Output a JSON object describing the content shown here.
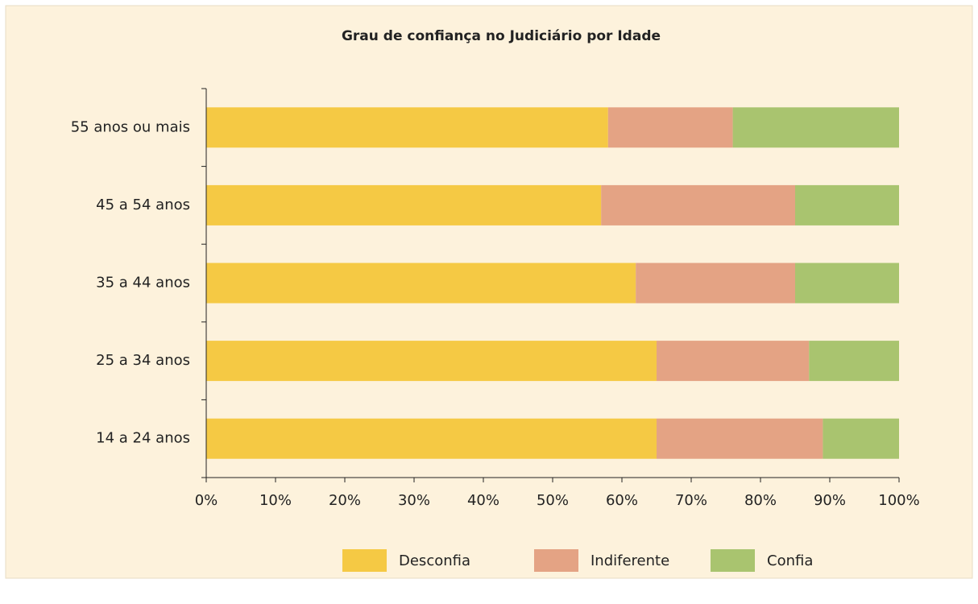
{
  "chart_data": {
    "type": "stacked-barh",
    "title": "Grau de confiança no Judiciário por Idade",
    "categories": [
      "55 anos ou mais",
      "45 a 54 anos",
      "35 a 44 anos",
      "25 a 34 anos",
      "14 a 24 anos"
    ],
    "series": [
      {
        "name": "Desconfia",
        "color": "#f5c944",
        "values": [
          58,
          57,
          62,
          65,
          65
        ]
      },
      {
        "name": "Indiferente",
        "color": "#e4a384",
        "values": [
          18,
          28,
          23,
          22,
          24
        ]
      },
      {
        "name": "Confia",
        "color": "#a9c46f",
        "values": [
          24,
          15,
          15,
          13,
          11
        ]
      }
    ],
    "xlim": [
      0,
      100
    ],
    "xticks": [
      {
        "value": 0,
        "label": "0%"
      },
      {
        "value": 10,
        "label": "10%"
      },
      {
        "value": 20,
        "label": "20%"
      },
      {
        "value": 30,
        "label": "30%"
      },
      {
        "value": 40,
        "label": "40%"
      },
      {
        "value": 50,
        "label": "50%"
      },
      {
        "value": 60,
        "label": "60%"
      },
      {
        "value": 70,
        "label": "70%"
      },
      {
        "value": 80,
        "label": "80%"
      },
      {
        "value": 90,
        "label": "90%"
      },
      {
        "value": 100,
        "label": "100%"
      }
    ],
    "legend": "bottom"
  }
}
